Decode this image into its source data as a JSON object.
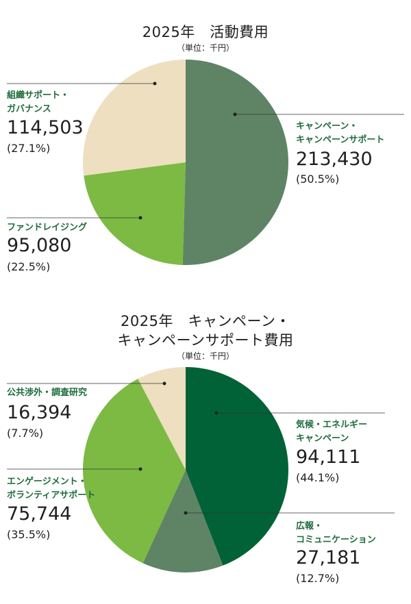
{
  "chart_data": [
    {
      "type": "pie",
      "title": "2025年　活動費用",
      "unit": "（単位：千円）",
      "slices": [
        {
          "label_lines": [
            "キャンペーン・",
            "キャンペーンサポート"
          ],
          "value": 213430,
          "value_text": "213,430",
          "percent": 50.5,
          "percent_text": "(50.5%)",
          "color": "#5e8465"
        },
        {
          "label_lines": [
            "ファンドレイジング"
          ],
          "value": 95080,
          "value_text": "95,080",
          "percent": 22.5,
          "percent_text": "(22.5%)",
          "color": "#7cba43"
        },
        {
          "label_lines": [
            "組織サポート・",
            "ガバナンス"
          ],
          "value": 114503,
          "value_text": "114,503",
          "percent": 27.1,
          "percent_text": "(27.1%)",
          "color": "#eedfc0"
        }
      ]
    },
    {
      "type": "pie",
      "title_lines": [
        "2025年　キャンペーン・",
        "キャンペーンサポート費用"
      ],
      "unit": "（単位：千円）",
      "slices": [
        {
          "label_lines": [
            "気候・エネルギー",
            "キャンペーン"
          ],
          "value": 94111,
          "value_text": "94,111",
          "percent": 44.1,
          "percent_text": "(44.1%)",
          "color": "#006236"
        },
        {
          "label_lines": [
            "広報・",
            "コミュニケーション"
          ],
          "value": 27181,
          "value_text": "27,181",
          "percent": 12.7,
          "percent_text": "(12.7%)",
          "color": "#5e8465"
        },
        {
          "label_lines": [
            "エンゲージメント・",
            "ボランティアサポート"
          ],
          "value": 75744,
          "value_text": "75,744",
          "percent": 35.5,
          "percent_text": "(35.5%)",
          "color": "#7cba43"
        },
        {
          "label_lines": [
            "公共渉外・調査研究"
          ],
          "value": 16394,
          "value_text": "16,394",
          "percent": 7.7,
          "percent_text": "(7.7%)",
          "color": "#eedfc0"
        }
      ]
    }
  ]
}
